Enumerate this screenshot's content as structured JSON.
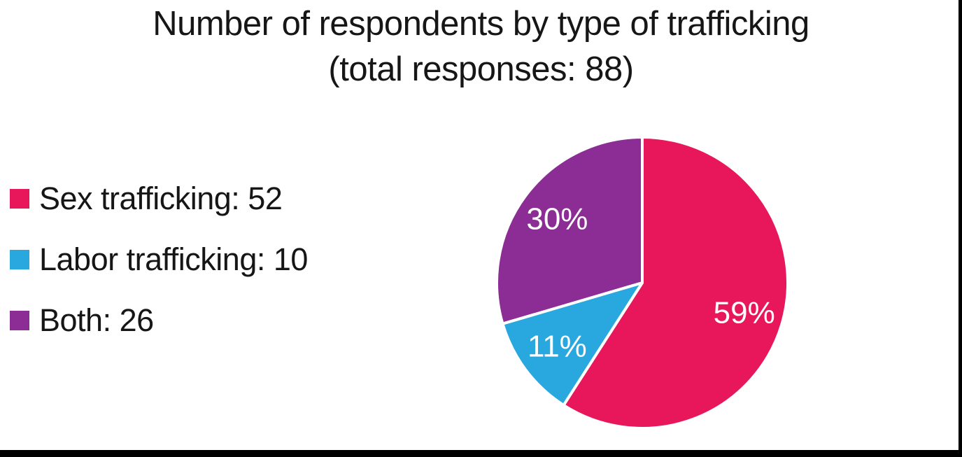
{
  "chart_data": {
    "type": "pie",
    "title": "Number of respondents by type of trafficking",
    "subtitle": "(total responses: 88)",
    "total_responses": 88,
    "categories": [
      "Sex trafficking",
      "Labor trafficking",
      "Both"
    ],
    "values": [
      52,
      10,
      26
    ],
    "percent_labels": [
      "59%",
      "11%",
      "30%"
    ],
    "slice_colors": [
      "#e8175c",
      "#29a8e0",
      "#8b2d94"
    ],
    "start_angle_deg": 0,
    "direction": "clockwise",
    "slice_border_color": "#ffffff",
    "slice_label_color": "#ffffff",
    "legend": {
      "position": "left",
      "items": [
        {
          "label": "Sex trafficking: 52",
          "color": "#e8175c"
        },
        {
          "label": "Labor trafficking: 10",
          "color": "#29a8e0"
        },
        {
          "label": "Both: 26",
          "color": "#8b2d94"
        }
      ]
    },
    "text_color": "#161616",
    "background": "#ffffff",
    "frame_color": "#000000"
  }
}
